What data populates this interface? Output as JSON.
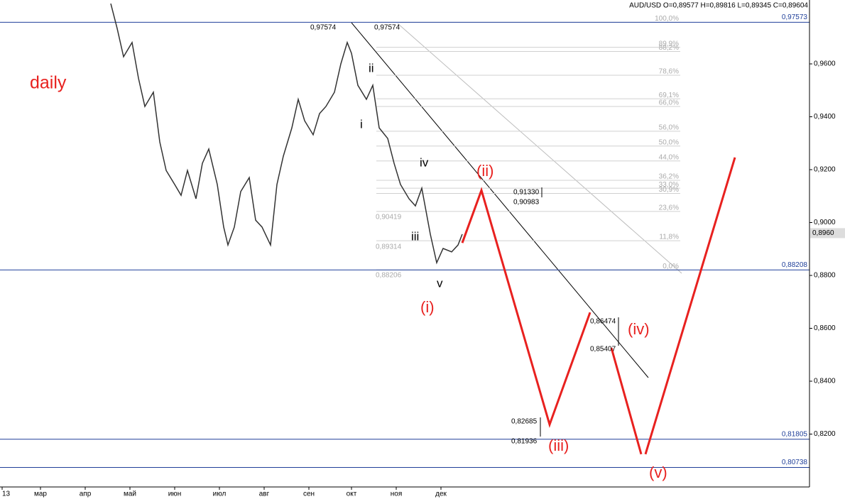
{
  "chart_data": {
    "type": "line",
    "header": "AUD/USD O=0,89577 H=0,89816 L=0,89345 C=0,89604",
    "title": "daily",
    "xlim": [
      0,
      380
    ],
    "ylim": [
      0.8,
      0.98416
    ],
    "xticks": [
      {
        "value": 1,
        "label": "13"
      },
      {
        "value": 19,
        "label": "мар"
      },
      {
        "value": 40,
        "label": "апр"
      },
      {
        "value": 61,
        "label": "май"
      },
      {
        "value": 82,
        "label": "июн"
      },
      {
        "value": 103,
        "label": "июл"
      },
      {
        "value": 124,
        "label": "авг"
      },
      {
        "value": 145,
        "label": "сен"
      },
      {
        "value": 165,
        "label": "окт"
      },
      {
        "value": 186,
        "label": "ноя"
      },
      {
        "value": 207,
        "label": "дек"
      }
    ],
    "yticks": [
      {
        "value": 0.82,
        "label": "0,8200"
      },
      {
        "value": 0.84,
        "label": "0,8400"
      },
      {
        "value": 0.86,
        "label": "0,8600"
      },
      {
        "value": 0.88,
        "label": "0,8800"
      },
      {
        "value": 0.9,
        "label": "0,9000"
      },
      {
        "value": 0.92,
        "label": "0,9200"
      },
      {
        "value": 0.94,
        "label": "0,9400"
      },
      {
        "value": 0.96,
        "label": "0,9600"
      }
    ],
    "series": [
      {
        "name": "AUD/USD",
        "color": "#333333",
        "x": [
          52,
          55,
          58,
          62,
          65,
          68,
          72,
          75,
          78,
          82,
          85,
          88,
          92,
          95,
          98,
          102,
          105,
          107,
          110,
          113,
          117,
          120,
          123,
          127,
          130,
          133,
          137,
          140,
          143,
          147,
          150,
          153,
          157,
          160,
          163,
          165,
          168,
          172,
          175,
          178,
          182,
          185,
          188,
          192,
          195,
          198,
          202,
          205,
          208,
          212,
          215,
          217
        ],
        "values": [
          0.9828,
          0.9734,
          0.9627,
          0.9681,
          0.9546,
          0.9439,
          0.9493,
          0.9305,
          0.9197,
          0.9144,
          0.9103,
          0.9197,
          0.909,
          0.9224,
          0.9278,
          0.9144,
          0.8983,
          0.8915,
          0.8983,
          0.9117,
          0.917,
          0.9009,
          0.8983,
          0.8915,
          0.9144,
          0.9251,
          0.9358,
          0.9466,
          0.9385,
          0.9332,
          0.9412,
          0.9439,
          0.9493,
          0.96,
          0.9681,
          0.964,
          0.9519,
          0.9466,
          0.9519,
          0.9358,
          0.9318,
          0.9224,
          0.9144,
          0.909,
          0.9063,
          0.913,
          0.8956,
          0.8848,
          0.8902,
          0.8889,
          0.8915,
          0.8956
        ]
      },
      {
        "name": "forecast",
        "color": "#e8211f",
        "x": [
          217,
          226,
          258,
          277,
          282,
          287,
          301,
          302,
          303,
          345
        ],
        "values": [
          0.8923,
          0.9122,
          0.8236,
          0.866,
          null,
          0.8526,
          0.8124,
          null,
          0.8124,
          0.9246
        ]
      }
    ],
    "levels": [
      {
        "value": 0.97573,
        "label": "0,97573"
      },
      {
        "value": 0.88208,
        "label": "0,88208"
      },
      {
        "value": 0.81805,
        "label": "0,81805"
      },
      {
        "value": 0.80738,
        "label": "0,80738"
      }
    ],
    "fib_levels": [
      {
        "value": 0.97574,
        "label": "100,0%"
      },
      {
        "value": 0.96627,
        "label": "89,9%"
      },
      {
        "value": 0.96469,
        "label": "88,2%"
      },
      {
        "value": 0.9557,
        "label": "78,6%"
      },
      {
        "value": 0.9468,
        "label": "69,1%"
      },
      {
        "value": 0.9439,
        "label": "66,0%"
      },
      {
        "value": 0.93453,
        "label": "56,0%"
      },
      {
        "value": 0.92891,
        "label": "50,0%"
      },
      {
        "value": 0.92329,
        "label": "44,0%"
      },
      {
        "value": 0.91598,
        "label": "36,2%"
      },
      {
        "value": 0.91299,
        "label": "33,0%"
      },
      {
        "value": 0.91102,
        "label": "30,9%"
      },
      {
        "value": 0.90419,
        "label": "23,6%"
      },
      {
        "value": 0.89313,
        "label": "11,8%"
      },
      {
        "value": 0.88208,
        "label": "0,0%"
      }
    ],
    "last_price": {
      "value": 0.896,
      "label": "0,8960"
    },
    "price_notes": [
      "0,97574",
      "0,97574",
      "0,90419",
      "0,89314",
      "0,88206",
      "0,91330",
      "0,90983",
      "0,86474",
      "0,85407",
      "0,82685",
      "0,81936"
    ],
    "wave_labels": [
      "i",
      "ii",
      "iii",
      "iv",
      "v"
    ],
    "degree_labels": [
      "(i)",
      "(ii)",
      "(iii)",
      "(iv)",
      "(v)"
    ]
  }
}
